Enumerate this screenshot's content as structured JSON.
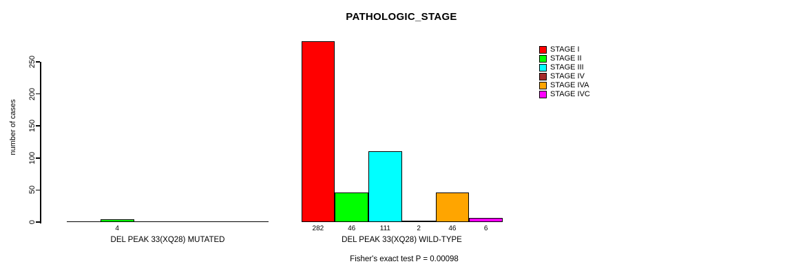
{
  "chart_data": {
    "type": "bar",
    "title": "PATHOLOGIC_STAGE",
    "ylabel": "number of cases",
    "ylim": [
      0,
      250
    ],
    "yticks": [
      0,
      50,
      100,
      150,
      200,
      250
    ],
    "grid": false,
    "legend_position": "right",
    "categories": [
      "STAGE I",
      "STAGE II",
      "STAGE III",
      "STAGE IV",
      "STAGE IVA",
      "STAGE IVC"
    ],
    "colors": [
      "#ff0000",
      "#00ff00",
      "#00ffff",
      "#a52a2a",
      "#ffa500",
      "#ff00ff"
    ],
    "groups": [
      {
        "label": "DEL PEAK 33(XQ28) MUTATED",
        "values": [
          0,
          4,
          0,
          0,
          0,
          0
        ]
      },
      {
        "label": "DEL PEAK 33(XQ28) WILD-TYPE",
        "values": [
          282,
          46,
          111,
          2,
          46,
          6
        ]
      }
    ],
    "footnote": "Fisher's exact test P = 0.00098",
    "background_color": "#ffffff"
  }
}
